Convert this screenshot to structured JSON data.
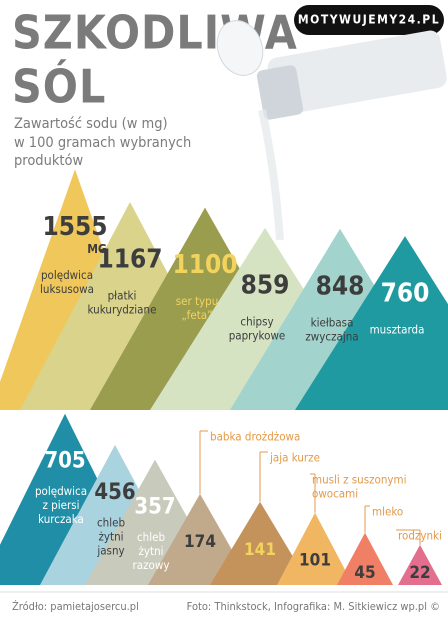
{
  "brand": "MOTYWUJEMY24.PL",
  "title": [
    "SZKODLIWA",
    "SÓL"
  ],
  "subtitle": [
    "Zawartość sodu (w mg)",
    "w 100 gramach wybranych",
    "produktów"
  ],
  "footer": {
    "source": "Źródło: pamietajosercu.pl",
    "credits": "Foto: Thinkstock, Infografika: M. Sitkiewicz wp.pl ©"
  },
  "chart_data": [
    {
      "type": "triangle",
      "unit": "MG",
      "categories": [
        [
          "polędwica",
          "luksusowa"
        ],
        [
          "płatki",
          "kukurydziane"
        ],
        [
          "ser typu",
          "„feta”"
        ],
        [
          "chipsy",
          "paprykowe"
        ],
        [
          "kiełbasa",
          "zwyczajna"
        ],
        [
          "musztarda"
        ]
      ],
      "values": [
        1555,
        1167,
        1100,
        859,
        848,
        760
      ],
      "colors": [
        "#f0c75a",
        "#d9d38c",
        "#9a9c4e",
        "#d5e3c2",
        "#a2d3cd",
        "#1f9aa1"
      ],
      "text_colors": [
        "#3d3d3d",
        "#3d3d3d",
        "#f2d35e",
        "#3d3d3d",
        "#3d3d3d",
        "#ffffff"
      ]
    },
    {
      "type": "triangle",
      "categories": [
        [
          "polędwica",
          "z piersi",
          "kurczaka"
        ],
        [
          "chleb",
          "żytni",
          "jasny"
        ],
        [
          "chleb",
          "żytni",
          "razowy"
        ],
        [
          "babka drożdżowa"
        ],
        [
          "jaja kurze"
        ],
        [
          "musli z suszonymi",
          "owocami"
        ],
        [
          "mleko"
        ],
        [
          "rodzynki"
        ]
      ],
      "values": [
        705,
        456,
        357,
        174,
        141,
        101,
        45,
        22
      ],
      "colors": [
        "#1f8ea6",
        "#a9d3df",
        "#c8cabc",
        "#c1aa8c",
        "#c4925b",
        "#f0b662",
        "#ef8066",
        "#e46e8d"
      ],
      "text_colors": [
        "#ffffff",
        "#3d3d3d",
        "#ffffff",
        "#3d3d3d",
        "#f2d35e",
        "#3d3d3d",
        "#3d3d3d",
        "#3d3d3d"
      ]
    }
  ]
}
